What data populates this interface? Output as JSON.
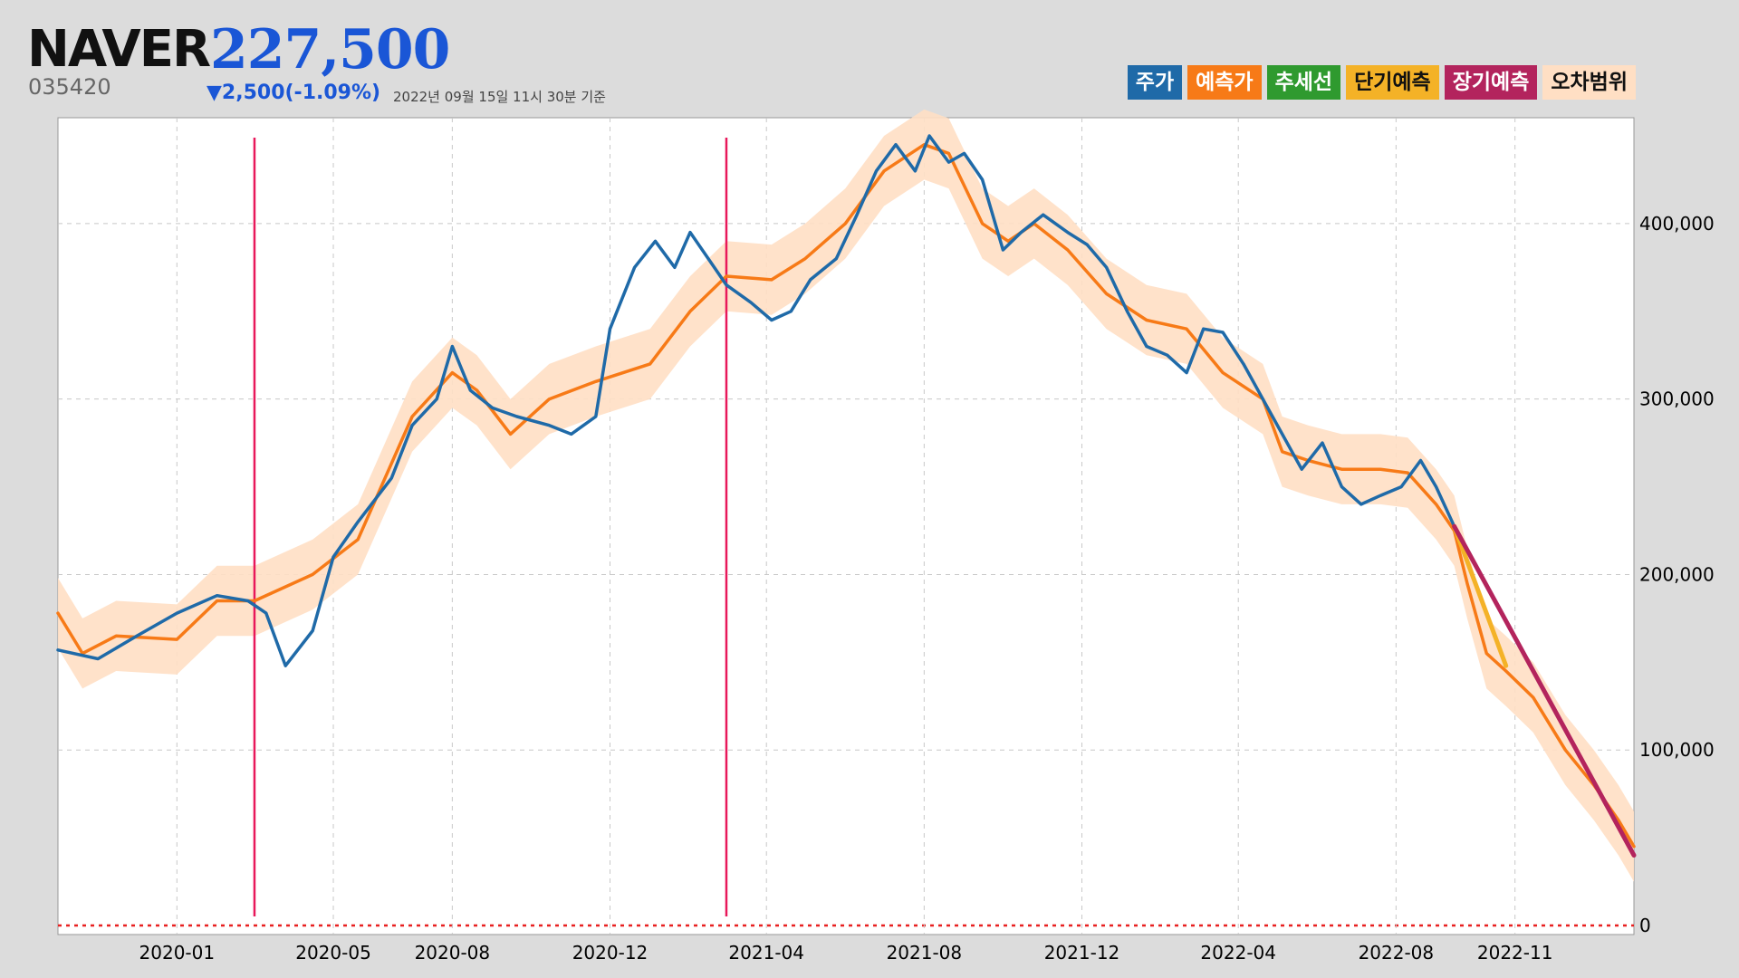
{
  "header": {
    "name": "NAVER",
    "price": "227,500",
    "code": "035420",
    "change": "▼2,500(-1.09%)",
    "as_of": "2022년 09월 15일 11시 30분 기준"
  },
  "colors": {
    "price": "#1f6aa8",
    "forecast": "#f77a17",
    "trend": "#2f9a2f",
    "short_term": "#f4b227",
    "long_term": "#b3245d",
    "error_band": "#ffdfc4",
    "marker": "#e8185a",
    "zero_line": "#e82020"
  },
  "chart_data": {
    "type": "line",
    "title": "",
    "xlabel": "",
    "ylabel": "",
    "x_range": [
      "2019-10-01",
      "2023-02-01"
    ],
    "ylim": [
      0,
      450000
    ],
    "y_ticks": [
      0,
      100000,
      200000,
      300000,
      400000
    ],
    "y_tick_labels": [
      "0",
      "100,000",
      "200,000",
      "300,000",
      "400,000"
    ],
    "x_ticks": [
      "2020-01-01",
      "2020-05-01",
      "2020-08-01",
      "2020-12-01",
      "2021-04-01",
      "2021-08-01",
      "2021-12-01",
      "2022-04-01",
      "2022-08-01",
      "2022-11-01"
    ],
    "x_tick_labels": [
      "2020-01",
      "2020-05",
      "2020-08",
      "2020-12",
      "2021-04",
      "2021-08",
      "2021-12",
      "2022-04",
      "2022-08",
      "2022-11"
    ],
    "grid": true,
    "legend_position": "top-right",
    "legend": [
      "주가",
      "예측가",
      "추세선",
      "단기예측",
      "장기예측",
      "오차범위"
    ],
    "vertical_markers": [
      "2020-03-01",
      "2021-03-01"
    ],
    "series": [
      {
        "name": "주가",
        "x": [
          "2019-10-01",
          "2019-11-01",
          "2019-12-01",
          "2020-01-01",
          "2020-02-01",
          "2020-02-25",
          "2020-03-10",
          "2020-03-25",
          "2020-04-15",
          "2020-05-01",
          "2020-05-20",
          "2020-06-15",
          "2020-07-01",
          "2020-07-20",
          "2020-08-01",
          "2020-08-15",
          "2020-09-01",
          "2020-09-20",
          "2020-10-15",
          "2020-11-01",
          "2020-11-20",
          "2020-12-01",
          "2020-12-20",
          "2021-01-05",
          "2021-01-20",
          "2021-02-01",
          "2021-02-15",
          "2021-03-01",
          "2021-03-20",
          "2021-04-05",
          "2021-04-20",
          "2021-05-05",
          "2021-05-25",
          "2021-06-10",
          "2021-06-25",
          "2021-07-10",
          "2021-07-25",
          "2021-08-05",
          "2021-08-20",
          "2021-09-01",
          "2021-09-15",
          "2021-10-01",
          "2021-10-15",
          "2021-11-01",
          "2021-11-20",
          "2021-12-05",
          "2021-12-20",
          "2022-01-05",
          "2022-01-20",
          "2022-02-05",
          "2022-02-20",
          "2022-03-05",
          "2022-03-20",
          "2022-04-05",
          "2022-04-20",
          "2022-05-05",
          "2022-05-20",
          "2022-06-05",
          "2022-06-20",
          "2022-07-05",
          "2022-07-20",
          "2022-08-05",
          "2022-08-20",
          "2022-09-01",
          "2022-09-15"
        ],
        "y": [
          157000,
          152000,
          165000,
          178000,
          188000,
          185000,
          178000,
          148000,
          168000,
          210000,
          230000,
          255000,
          285000,
          300000,
          330000,
          305000,
          295000,
          290000,
          285000,
          280000,
          290000,
          340000,
          375000,
          390000,
          375000,
          395000,
          380000,
          365000,
          355000,
          345000,
          350000,
          368000,
          380000,
          405000,
          430000,
          445000,
          430000,
          450000,
          435000,
          440000,
          425000,
          385000,
          395000,
          405000,
          395000,
          388000,
          375000,
          350000,
          330000,
          325000,
          315000,
          340000,
          338000,
          320000,
          300000,
          280000,
          260000,
          275000,
          250000,
          240000,
          245000,
          250000,
          265000,
          250000,
          227500
        ]
      },
      {
        "name": "예측가",
        "x": [
          "2019-10-01",
          "2019-10-20",
          "2019-11-15",
          "2020-01-01",
          "2020-02-01",
          "2020-03-01",
          "2020-04-15",
          "2020-05-20",
          "2020-07-01",
          "2020-08-01",
          "2020-08-20",
          "2020-09-15",
          "2020-10-15",
          "2020-11-20",
          "2021-01-01",
          "2021-02-01",
          "2021-03-01",
          "2021-04-05",
          "2021-05-01",
          "2021-06-01",
          "2021-07-01",
          "2021-08-01",
          "2021-08-20",
          "2021-09-15",
          "2021-10-05",
          "2021-10-25",
          "2021-11-20",
          "2021-12-20",
          "2022-01-20",
          "2022-02-20",
          "2022-03-20",
          "2022-04-20",
          "2022-05-05",
          "2022-05-25",
          "2022-06-20",
          "2022-07-20",
          "2022-08-10",
          "2022-09-01",
          "2022-09-15",
          "2022-09-25",
          "2022-10-10",
          "2022-10-25",
          "2022-11-15",
          "2022-12-10",
          "2023-01-01",
          "2023-01-20",
          "2023-02-01"
        ],
        "y": [
          178000,
          155000,
          165000,
          163000,
          185000,
          185000,
          200000,
          220000,
          290000,
          315000,
          305000,
          280000,
          300000,
          310000,
          320000,
          350000,
          370000,
          368000,
          380000,
          400000,
          430000,
          445000,
          440000,
          400000,
          390000,
          400000,
          385000,
          360000,
          345000,
          340000,
          315000,
          300000,
          270000,
          265000,
          260000,
          260000,
          258000,
          240000,
          225000,
          195000,
          155000,
          145000,
          130000,
          100000,
          80000,
          60000,
          45000
        ]
      },
      {
        "name": "단기예측",
        "x": [
          "2022-09-15",
          "2022-10-25"
        ],
        "y": [
          227500,
          148000
        ]
      },
      {
        "name": "장기예측",
        "x": [
          "2022-09-15",
          "2023-02-01"
        ],
        "y": [
          227500,
          40000
        ]
      }
    ],
    "error_band": {
      "name": "오차범위",
      "half_width": 20000
    }
  }
}
